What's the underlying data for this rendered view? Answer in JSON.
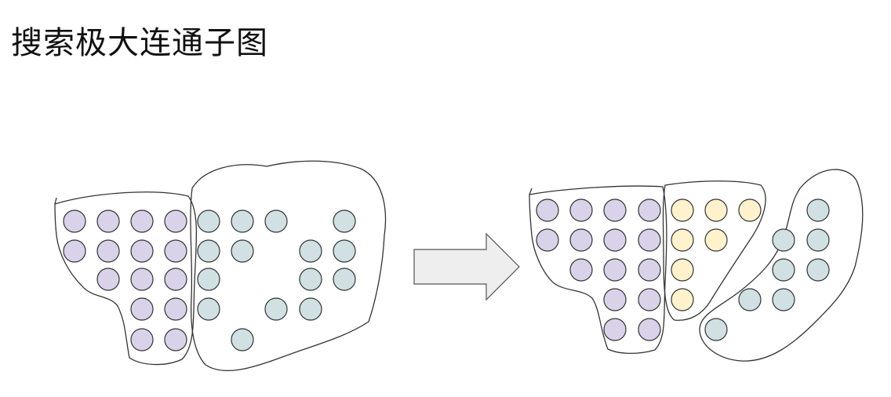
{
  "title": "搜索极大连通子图",
  "colors": {
    "purple": "#d9d2e9",
    "gray": "#d0e0e3",
    "yellow": "#fff2cc",
    "stroke": "#333333",
    "arrow_fill": "#eeeeee"
  },
  "diagram": {
    "before": {
      "groups": [
        {
          "name": "purple-component",
          "color": "purple",
          "node_count": 14
        },
        {
          "name": "gray-component",
          "color": "gray",
          "node_count": 15
        }
      ]
    },
    "after": {
      "groups": [
        {
          "name": "purple-component",
          "color": "purple",
          "node_count": 14
        },
        {
          "name": "yellow-component",
          "color": "yellow",
          "node_count": 7
        },
        {
          "name": "gray-component",
          "color": "gray",
          "node_count": 8
        }
      ]
    },
    "arrow": {
      "icon": "right-arrow-icon"
    }
  }
}
